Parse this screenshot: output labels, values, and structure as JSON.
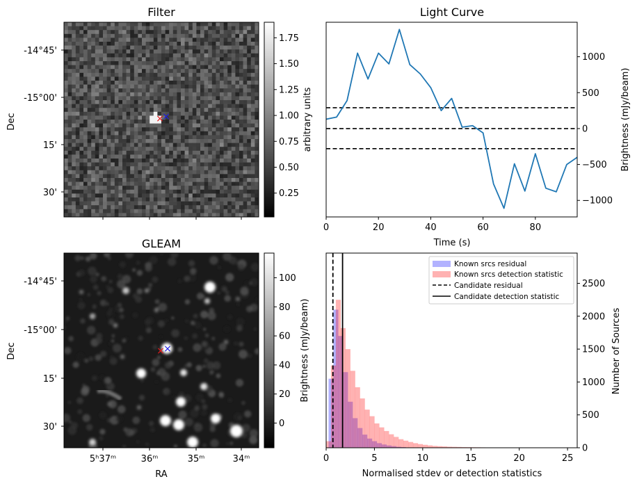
{
  "figure": {
    "panels": {
      "filter": {
        "title": "Filter",
        "ylabel": "Dec",
        "y_ticks": [
          "-14°45'",
          "-15°00'",
          "15'",
          "30'"
        ],
        "colorbar_label": "arbitrary units",
        "colorbar_ticks": [
          "1.75",
          "1.50",
          "1.25",
          "1.00",
          "0.75",
          "0.50",
          "0.25"
        ],
        "colorbar_range": [
          0.02,
          1.9
        ],
        "markers": [
          {
            "symbol": "×",
            "color": "#e8191b",
            "role": "red marker"
          },
          {
            "symbol": "×",
            "color": "#1a1ae6",
            "role": "blue marker"
          }
        ]
      },
      "gleam": {
        "title": "GLEAM",
        "xlabel": "RA",
        "ylabel": "Dec",
        "x_ticks": [
          "5ʰ37ᵐ",
          "36ᵐ",
          "35ᵐ",
          "34ᵐ"
        ],
        "y_ticks": [
          "-14°45'",
          "-15°00'",
          "15'",
          "30'"
        ],
        "colorbar_label": "Brightness (mJy/beam)",
        "colorbar_ticks": [
          "100",
          "80",
          "60",
          "40",
          "20",
          "0"
        ],
        "colorbar_range": [
          -17,
          117
        ],
        "markers": [
          {
            "symbol": "×",
            "color": "#e8191b",
            "role": "red marker"
          },
          {
            "symbol": "×",
            "color": "#1a1ae6",
            "role": "blue marker"
          }
        ]
      }
    }
  },
  "chart_data": [
    {
      "type": "line",
      "title": "Light Curve",
      "xlabel": "Time (s)",
      "ylabel": "Brightness (mJy/beam)",
      "xlim": [
        0,
        96
      ],
      "ylim": [
        -1230,
        1480
      ],
      "x_ticks": [
        0,
        20,
        40,
        60,
        80
      ],
      "y_ticks": [
        -1000,
        -500,
        0,
        500,
        1000
      ],
      "y_axis_side": "right",
      "line_color": "#1f77b4",
      "series": [
        {
          "x": [
            0,
            4,
            8,
            12,
            16,
            20,
            24,
            28,
            32,
            36,
            40,
            44,
            48,
            52,
            56,
            60,
            64,
            68,
            72,
            76,
            80,
            84,
            88,
            92,
            96
          ],
          "y": [
            130,
            160,
            390,
            1050,
            690,
            1050,
            900,
            1380,
            890,
            760,
            570,
            250,
            420,
            20,
            40,
            -60,
            -770,
            -1110,
            -490,
            -870,
            -350,
            -830,
            -880,
            -500,
            -400
          ]
        }
      ],
      "hlines": [
        {
          "y": 290,
          "style": "dashed",
          "color": "#000000"
        },
        {
          "y": 0,
          "style": "dashed",
          "color": "#000000"
        },
        {
          "y": -280,
          "style": "dashed",
          "color": "#000000"
        }
      ]
    },
    {
      "type": "bar",
      "title": "",
      "xlabel": "Normalised stdev or detection statistics",
      "ylabel": "Number of Sources",
      "xlim": [
        0,
        26
      ],
      "ylim": [
        0,
        2960
      ],
      "x_ticks": [
        0,
        5,
        10,
        15,
        20,
        25
      ],
      "y_ticks": [
        0,
        500,
        1000,
        1500,
        2000,
        2500
      ],
      "y_axis_side": "right",
      "legend_position": "top-right",
      "bin_width": 0.5,
      "series": [
        {
          "name": "Known srcs residual",
          "color": "#0000ff",
          "alpha": 0.3,
          "bin_starts": [
            0.25,
            0.75,
            1.25,
            1.75,
            2.25,
            2.75,
            3.25,
            3.75,
            4.25,
            4.75,
            5.25,
            5.75,
            6.25,
            6.75,
            7.25,
            7.75
          ],
          "values": [
            1050,
            2100,
            1700,
            1150,
            700,
            450,
            300,
            200,
            140,
            100,
            70,
            50,
            35,
            25,
            15,
            10
          ]
        },
        {
          "name": "Known srcs detection statistic",
          "color": "#ff0000",
          "alpha": 0.3,
          "bin_starts": [
            0,
            0.5,
            1,
            1.5,
            2,
            2.5,
            3,
            3.5,
            4,
            4.5,
            5,
            5.5,
            6,
            6.5,
            7,
            7.5,
            8,
            8.5,
            9,
            9.5,
            10,
            10.5,
            11,
            11.5,
            12,
            12.5,
            13,
            13.5,
            14,
            14.5,
            15,
            15.5,
            16,
            16.5,
            17,
            17.5,
            18,
            18.5,
            19,
            19.5,
            20,
            20.5,
            21,
            21.5,
            22,
            22.5,
            23,
            23.5,
            24,
            24.5,
            25,
            25.5
          ],
          "values": [
            100,
            1250,
            2250,
            1820,
            1500,
            1170,
            920,
            750,
            580,
            480,
            370,
            310,
            255,
            205,
            165,
            130,
            108,
            88,
            70,
            56,
            45,
            36,
            28,
            24,
            20,
            16,
            14,
            12,
            10,
            9,
            8,
            7,
            6,
            5,
            5,
            4,
            4,
            3,
            3,
            3,
            2,
            2,
            2,
            2,
            2,
            1,
            1,
            1,
            1,
            1,
            1,
            1
          ]
        }
      ],
      "vlines": [
        {
          "name": "Candidate residual",
          "x": 0.7,
          "style": "dashed",
          "color": "#000000"
        },
        {
          "name": "Candidate detection statistic",
          "x": 1.7,
          "style": "solid",
          "color": "#000000"
        }
      ]
    }
  ]
}
